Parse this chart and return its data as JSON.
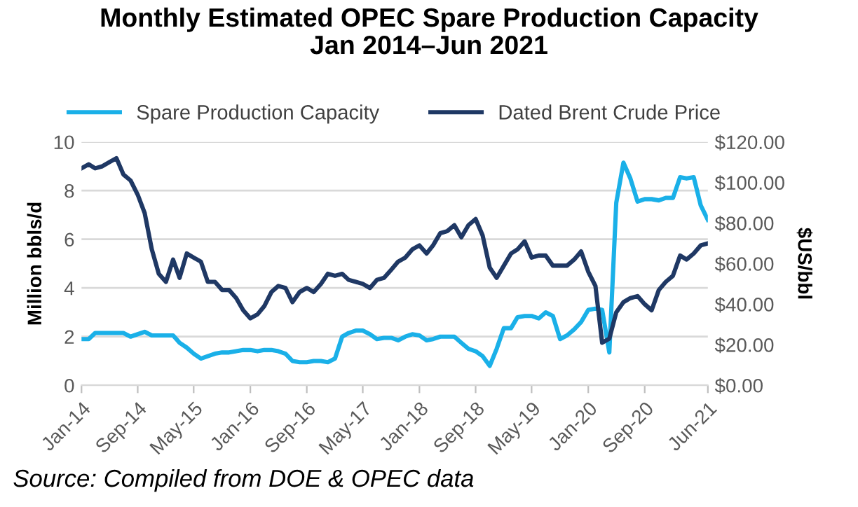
{
  "chart_data": {
    "type": "line",
    "title": "Monthly Estimated OPEC Spare Production Capacity\nJan 2014–Jun 2021",
    "ylabel": "Million bbls/d",
    "y2label": "$US/bbl",
    "x": [
      "2014-01",
      "2014-02",
      "2014-03",
      "2014-04",
      "2014-05",
      "2014-06",
      "2014-07",
      "2014-08",
      "2014-09",
      "2014-10",
      "2014-11",
      "2014-12",
      "2015-01",
      "2015-02",
      "2015-03",
      "2015-04",
      "2015-05",
      "2015-06",
      "2015-07",
      "2015-08",
      "2015-09",
      "2015-10",
      "2015-11",
      "2015-12",
      "2016-01",
      "2016-02",
      "2016-03",
      "2016-04",
      "2016-05",
      "2016-06",
      "2016-07",
      "2016-08",
      "2016-09",
      "2016-10",
      "2016-11",
      "2016-12",
      "2017-01",
      "2017-02",
      "2017-03",
      "2017-04",
      "2017-05",
      "2017-06",
      "2017-07",
      "2017-08",
      "2017-09",
      "2017-10",
      "2017-11",
      "2017-12",
      "2018-01",
      "2018-02",
      "2018-03",
      "2018-04",
      "2018-05",
      "2018-06",
      "2018-07",
      "2018-08",
      "2018-09",
      "2018-10",
      "2018-11",
      "2018-12",
      "2019-01",
      "2019-02",
      "2019-03",
      "2019-04",
      "2019-05",
      "2019-06",
      "2019-07",
      "2019-08",
      "2019-09",
      "2019-10",
      "2019-11",
      "2019-12",
      "2020-01",
      "2020-02",
      "2020-03",
      "2020-04",
      "2020-05",
      "2020-06",
      "2020-07",
      "2020-08",
      "2020-09",
      "2020-10",
      "2020-11",
      "2020-12",
      "2021-01",
      "2021-02",
      "2021-03",
      "2021-04",
      "2021-05",
      "2021-06"
    ],
    "series": [
      {
        "name": "Spare Production Capacity",
        "color": "#1ab0e8",
        "values": [
          1.9,
          1.9,
          2.15,
          2.15,
          2.15,
          2.15,
          2.15,
          2.0,
          2.1,
          2.2,
          2.05,
          2.05,
          2.05,
          2.05,
          1.75,
          1.55,
          1.3,
          1.1,
          1.2,
          1.3,
          1.35,
          1.35,
          1.4,
          1.45,
          1.45,
          1.4,
          1.45,
          1.45,
          1.4,
          1.3,
          1.0,
          0.95,
          0.95,
          1.0,
          1.0,
          0.95,
          1.1,
          2.0,
          2.15,
          2.25,
          2.25,
          2.1,
          1.9,
          1.95,
          1.95,
          1.85,
          2.0,
          2.1,
          2.05,
          1.85,
          1.9,
          2.0,
          2.0,
          2.0,
          1.75,
          1.5,
          1.4,
          1.2,
          0.8,
          1.5,
          2.35,
          2.35,
          2.8,
          2.85,
          2.85,
          2.75,
          3.0,
          2.85,
          1.9,
          2.05,
          2.3,
          2.6,
          3.1,
          3.15,
          3.1,
          1.35,
          7.5,
          9.15,
          8.5,
          7.55,
          7.65,
          7.65,
          7.6,
          7.7,
          7.7,
          8.55,
          8.5,
          8.55,
          7.4,
          6.8
        ]
      },
      {
        "name": "Dated Brent Crude Price",
        "color": "#1f3864",
        "axis": "y2",
        "values": [
          107,
          109,
          107,
          108,
          110,
          112,
          104,
          101,
          94,
          85,
          67,
          55,
          51,
          62,
          53,
          65,
          63,
          61,
          51,
          51,
          47,
          47,
          43,
          37,
          33,
          35,
          39,
          46,
          49,
          48,
          41,
          46,
          48,
          46,
          50,
          55,
          54,
          55,
          52,
          51,
          50,
          48,
          52,
          53,
          57,
          61,
          63,
          67,
          69,
          65,
          69,
          75,
          76,
          79,
          73,
          79,
          82,
          74,
          58,
          53,
          59,
          65,
          67,
          71,
          63,
          64,
          64,
          59,
          59,
          59,
          62,
          66,
          56,
          49,
          21,
          23,
          36,
          41,
          43,
          44,
          40,
          37,
          47,
          51,
          54,
          64,
          62,
          65,
          69,
          70
        ]
      }
    ],
    "xlim": [
      "2014-01",
      "2021-06"
    ],
    "xticks": [
      {
        "value": "2014-01",
        "label": "Jan-14"
      },
      {
        "value": "2014-09",
        "label": "Sep-14"
      },
      {
        "value": "2015-05",
        "label": "May-15"
      },
      {
        "value": "2016-01",
        "label": "Jan-16"
      },
      {
        "value": "2016-09",
        "label": "Sep-16"
      },
      {
        "value": "2017-05",
        "label": "May-17"
      },
      {
        "value": "2018-01",
        "label": "Jan-18"
      },
      {
        "value": "2018-09",
        "label": "Sep-18"
      },
      {
        "value": "2019-05",
        "label": "May-19"
      },
      {
        "value": "2020-01",
        "label": "Jan-20"
      },
      {
        "value": "2020-09",
        "label": "Sep-20"
      },
      {
        "value": "2021-06",
        "label": "Jun-21"
      }
    ],
    "ylim": [
      0,
      10
    ],
    "yticks": [
      0,
      2,
      4,
      6,
      8,
      10
    ],
    "y2lim": [
      0,
      120
    ],
    "y2ticks": [
      {
        "value": 0,
        "label": "$0.00"
      },
      {
        "value": 20,
        "label": "$20.00"
      },
      {
        "value": 40,
        "label": "$40.00"
      },
      {
        "value": 60,
        "label": "$60.00"
      },
      {
        "value": 80,
        "label": "$80.00"
      },
      {
        "value": 100,
        "label": "$100.00"
      },
      {
        "value": 120,
        "label": "$120.00"
      }
    ],
    "grid": "y",
    "legend": "top",
    "marker": "none",
    "line_style": "solid",
    "annotations": [
      "Source: Compiled from DOE & OPEC data"
    ]
  }
}
